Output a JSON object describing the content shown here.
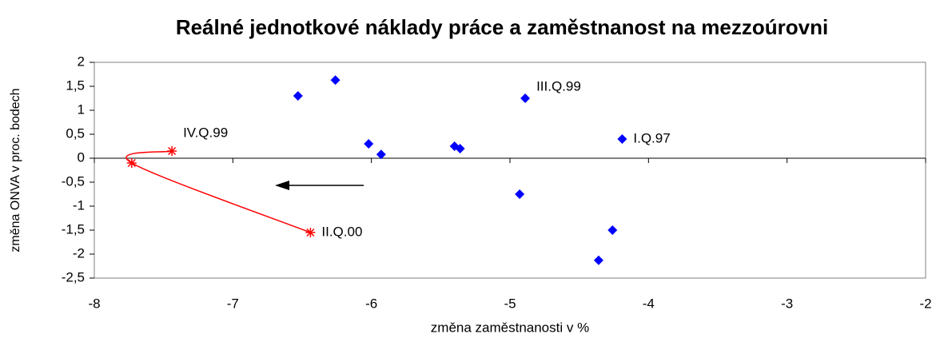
{
  "chart_data": {
    "type": "scatter",
    "title": "Reálné jednotkové náklady práce a zaměstnanost na mezzoúrovni",
    "x_label": "změna zaměstnanosti v %",
    "y_label": "změna ONVA v proc. bodech",
    "xlim": [
      -8,
      -2
    ],
    "xticks": [
      -8,
      -7,
      -6,
      -5,
      -4,
      -3,
      -2
    ],
    "ylim": [
      -2.5,
      2
    ],
    "yticks": [
      {
        "value": -2.5,
        "label": "-2,5"
      },
      -2,
      {
        "value": -1.5,
        "label": "-1,5"
      },
      -1,
      {
        "value": -0.5,
        "label": "-0,5"
      },
      0,
      {
        "value": 0.5,
        "label": "0,5"
      },
      1,
      {
        "value": 1.5,
        "label": "1,5"
      },
      2
    ],
    "grid": false,
    "series": [
      {
        "color": "#0000ff",
        "marker": "diamond",
        "line": false,
        "x": [
          -6.53,
          -6.26,
          -6.02,
          -5.93,
          -5.4,
          -5.36,
          -4.89,
          -4.19,
          -4.93,
          -4.26,
          -4.36
        ],
        "values": [
          1.3,
          1.63,
          0.3,
          0.08,
          0.25,
          0.2,
          1.25,
          0.4,
          -0.75,
          -1.5,
          -2.13
        ],
        "labels": [
          null,
          null,
          null,
          null,
          null,
          null,
          "III.Q.99",
          "I.Q.97",
          null,
          null,
          null
        ]
      },
      {
        "color": "#ff0000",
        "marker": "star",
        "line": true,
        "x": [
          -7.44,
          -7.73,
          -6.44
        ],
        "values": [
          0.15,
          -0.1,
          -1.55
        ],
        "labels": [
          "IV.Q.99",
          null,
          "II.Q.00"
        ]
      }
    ]
  }
}
